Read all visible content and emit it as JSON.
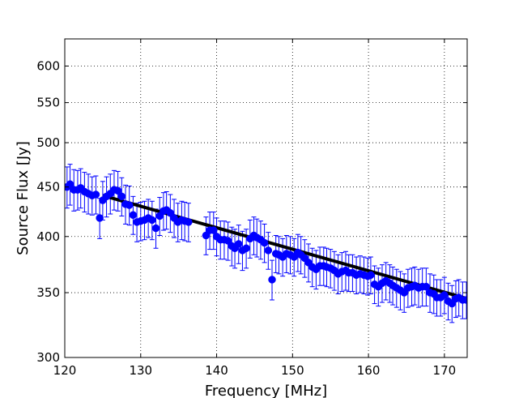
{
  "chart_data": {
    "type": "scatter",
    "title": "",
    "xlabel": "Frequency [MHz]",
    "ylabel": "Source Flux [Jy]",
    "xlim": [
      120,
      173
    ],
    "ylim": [
      300,
      640
    ],
    "yscale": "log",
    "grid": true,
    "x_ticks": [
      120,
      130,
      140,
      150,
      160,
      170
    ],
    "y_ticks": [
      300,
      350,
      400,
      450,
      500,
      550,
      600
    ],
    "x_tick_labels": [
      "120",
      "130",
      "140",
      "150",
      "160",
      "170"
    ],
    "y_tick_labels": [
      "300",
      "350",
      "400",
      "450",
      "500",
      "550",
      "600"
    ],
    "colors": {
      "points": "#0000ff",
      "fit": "#000000",
      "grid": "#000000"
    },
    "series": [
      {
        "kind": "points_with_errorbars",
        "x": [
          120.3,
          120.7,
          121.2,
          121.7,
          122.1,
          122.6,
          123.1,
          123.6,
          124.1,
          124.6,
          125.0,
          125.5,
          126.0,
          126.5,
          127.0,
          127.5,
          128.0,
          128.5,
          129.0,
          129.5,
          130.0,
          130.5,
          131.0,
          131.5,
          132.0,
          132.5,
          133.0,
          133.4,
          133.9,
          134.4,
          134.9,
          135.4,
          135.8,
          136.3,
          138.6,
          139.1,
          139.6,
          140.0,
          140.5,
          141.0,
          141.5,
          142.0,
          142.4,
          142.9,
          143.4,
          143.9,
          144.4,
          144.9,
          145.3,
          145.8,
          146.3,
          146.8,
          147.3,
          147.8,
          148.2,
          148.7,
          149.2,
          149.7,
          150.2,
          150.7,
          151.1,
          151.6,
          152.1,
          152.6,
          153.1,
          153.6,
          154.1,
          154.5,
          155.0,
          155.5,
          156.0,
          156.5,
          157.0,
          157.4,
          157.9,
          158.4,
          158.9,
          159.4,
          159.9,
          160.3,
          160.8,
          161.3,
          161.8,
          162.3,
          162.8,
          163.2,
          163.7,
          164.2,
          164.7,
          165.2,
          165.7,
          166.1,
          166.6,
          167.1,
          167.6,
          168.1,
          168.6,
          169.0,
          169.5,
          170.0,
          170.5,
          171.0,
          171.5,
          171.9,
          172.4,
          172.9
        ],
        "y": [
          450,
          453,
          447,
          447,
          449,
          445,
          443,
          441,
          442,
          418,
          436,
          440,
          443,
          447,
          446,
          440,
          432,
          431,
          421,
          414,
          415,
          416,
          418,
          416,
          408,
          420,
          425,
          426,
          423,
          418,
          414,
          416,
          415,
          414,
          401,
          406,
          406,
          400,
          397,
          397,
          396,
          391,
          389,
          393,
          387,
          389,
          398,
          401,
          399,
          397,
          394,
          387,
          361,
          384,
          383,
          381,
          384,
          383,
          381,
          385,
          383,
          380,
          376,
          372,
          370,
          373,
          373,
          372,
          371,
          369,
          366,
          368,
          369,
          367,
          367,
          365,
          366,
          365,
          364,
          365,
          357,
          355,
          358,
          360,
          358,
          356,
          354,
          352,
          350,
          354,
          355,
          356,
          354,
          355,
          355,
          350,
          349,
          346,
          346,
          348,
          343,
          341,
          345,
          346,
          344,
          344
        ],
        "yerr": [
          22,
          22,
          22,
          21,
          21,
          21,
          21,
          20,
          20,
          20,
          20,
          21,
          21,
          21,
          21,
          20,
          20,
          20,
          19,
          19,
          19,
          19,
          19,
          19,
          19,
          19,
          19,
          19,
          19,
          19,
          19,
          19,
          19,
          19,
          18,
          18,
          18,
          18,
          18,
          18,
          18,
          18,
          18,
          18,
          18,
          18,
          18,
          18,
          18,
          18,
          18,
          17,
          17,
          17,
          17,
          17,
          17,
          17,
          17,
          17,
          17,
          17,
          17,
          17,
          17,
          17,
          17,
          17,
          17,
          17,
          17,
          17,
          17,
          16,
          16,
          16,
          16,
          16,
          16,
          16,
          16,
          16,
          16,
          16,
          16,
          16,
          16,
          16,
          16,
          16,
          16,
          16,
          16,
          16,
          16,
          16,
          16,
          15,
          15,
          15,
          15,
          15,
          15,
          15,
          15,
          15
        ]
      },
      {
        "kind": "fit_line",
        "x": [
          125,
          173
        ],
        "y": [
          441,
          345
        ]
      }
    ]
  }
}
